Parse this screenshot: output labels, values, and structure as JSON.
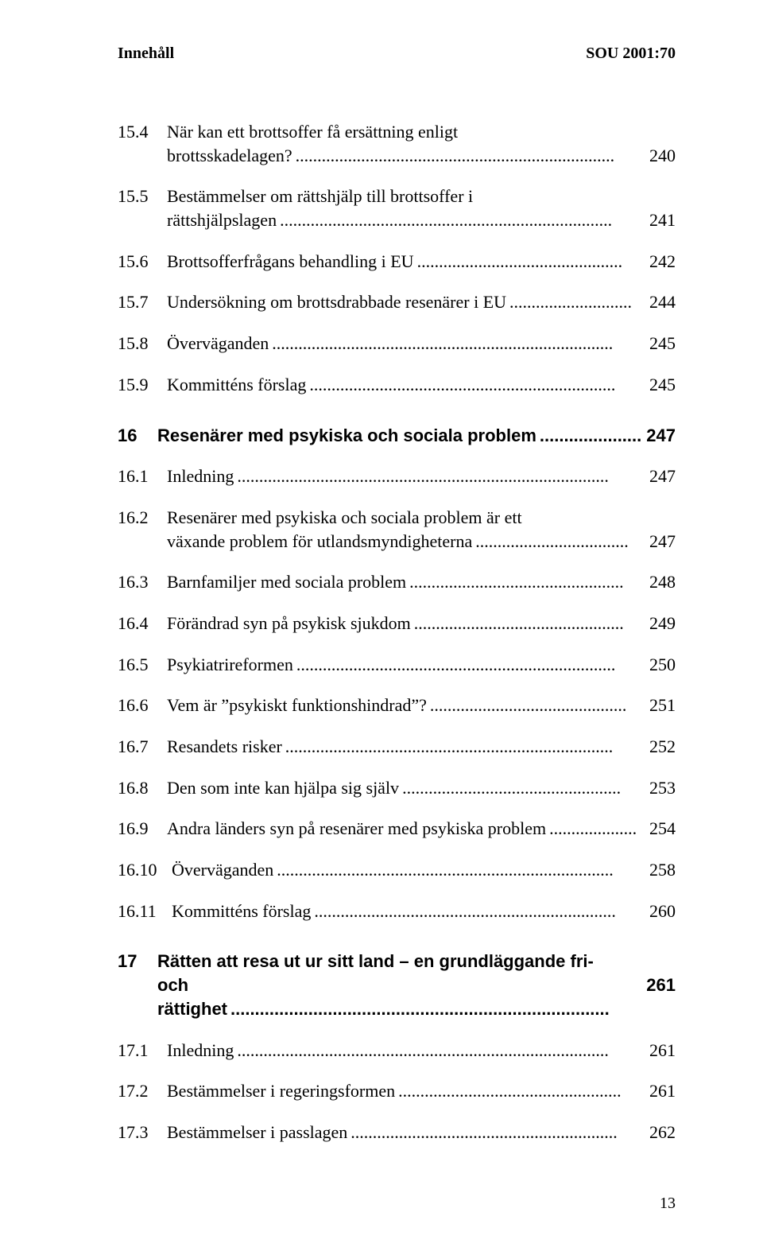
{
  "header": {
    "left": "Innehåll",
    "right": "SOU 2001:70"
  },
  "entries": [
    {
      "num": "15.4",
      "text1": "När kan ett brottsoffer få ersättning enligt",
      "text2": "brottsskadelagen?",
      "page": "240",
      "style": "normal",
      "wrap": true
    },
    {
      "num": "15.5",
      "text1": "Bestämmelser om rättshjälp till brottsoffer i",
      "text2": "rättshjälpslagen",
      "page": "241",
      "style": "normal",
      "wrap": true,
      "gap": "sm"
    },
    {
      "num": "15.6",
      "text1": "Brottsofferfrågans behandling i EU",
      "page": "242",
      "style": "normal",
      "gap": "sm"
    },
    {
      "num": "15.7",
      "text1": "Undersökning om brottsdrabbade resenärer i EU",
      "page": "244",
      "style": "normal",
      "gap": "sm"
    },
    {
      "num": "15.8",
      "text1": "Överväganden",
      "page": "245",
      "style": "normal",
      "gap": "sm"
    },
    {
      "num": "15.9",
      "text1": "Kommitténs förslag",
      "page": "245",
      "style": "normal",
      "gap": "sm"
    },
    {
      "num": "16",
      "text1": "Resenärer med psykiska och sociala problem",
      "page": "247",
      "style": "section",
      "gap": "lg"
    },
    {
      "num": "16.1",
      "text1": "Inledning",
      "page": "247",
      "style": "normal",
      "gap": "sm"
    },
    {
      "num": "16.2",
      "text1": "Resenärer med psykiska och sociala problem är ett",
      "text2": "växande problem för utlandsmyndigheterna",
      "page": "247",
      "style": "normal",
      "wrap": true,
      "gap": "sm"
    },
    {
      "num": "16.3",
      "text1": "Barnfamiljer med sociala problem",
      "page": "248",
      "style": "normal",
      "gap": "sm"
    },
    {
      "num": "16.4",
      "text1": "Förändrad syn på psykisk sjukdom",
      "page": "249",
      "style": "normal",
      "gap": "sm"
    },
    {
      "num": "16.5",
      "text1": "Psykiatrireformen",
      "page": "250",
      "style": "normal",
      "gap": "sm"
    },
    {
      "num": "16.6",
      "text1": "Vem är ”psykiskt funktionshindrad”?",
      "page": "251",
      "style": "normal",
      "gap": "sm"
    },
    {
      "num": "16.7",
      "text1": "Resandets risker",
      "page": "252",
      "style": "normal",
      "gap": "sm"
    },
    {
      "num": "16.8",
      "text1": "Den som inte kan hjälpa sig själv",
      "page": "253",
      "style": "normal",
      "gap": "sm"
    },
    {
      "num": "16.9",
      "text1": "Andra länders syn på resenärer med psykiska problem",
      "page": "254",
      "style": "normal",
      "gap": "sm"
    },
    {
      "num": "16.10",
      "text1": "Överväganden",
      "page": "258",
      "style": "normal",
      "gap": "sm",
      "nospace": true
    },
    {
      "num": "16.11",
      "text1": "Kommitténs förslag",
      "page": "260",
      "style": "normal",
      "gap": "sm",
      "nospace": true
    },
    {
      "num": "17",
      "text1": "Rätten att resa ut ur sitt land – en grundläggande fri-",
      "text2": "och rättighet",
      "page": "261",
      "style": "section",
      "wrap": true,
      "gap": "lg"
    },
    {
      "num": "17.1",
      "text1": "Inledning",
      "page": "261",
      "style": "normal",
      "gap": "sm"
    },
    {
      "num": "17.2",
      "text1": "Bestämmelser i regeringsformen",
      "page": "261",
      "style": "normal",
      "gap": "sm"
    },
    {
      "num": "17.3",
      "text1": "Bestämmelser i passlagen",
      "page": "262",
      "style": "normal",
      "gap": "sm"
    }
  ],
  "footer": {
    "page_number": "13"
  }
}
